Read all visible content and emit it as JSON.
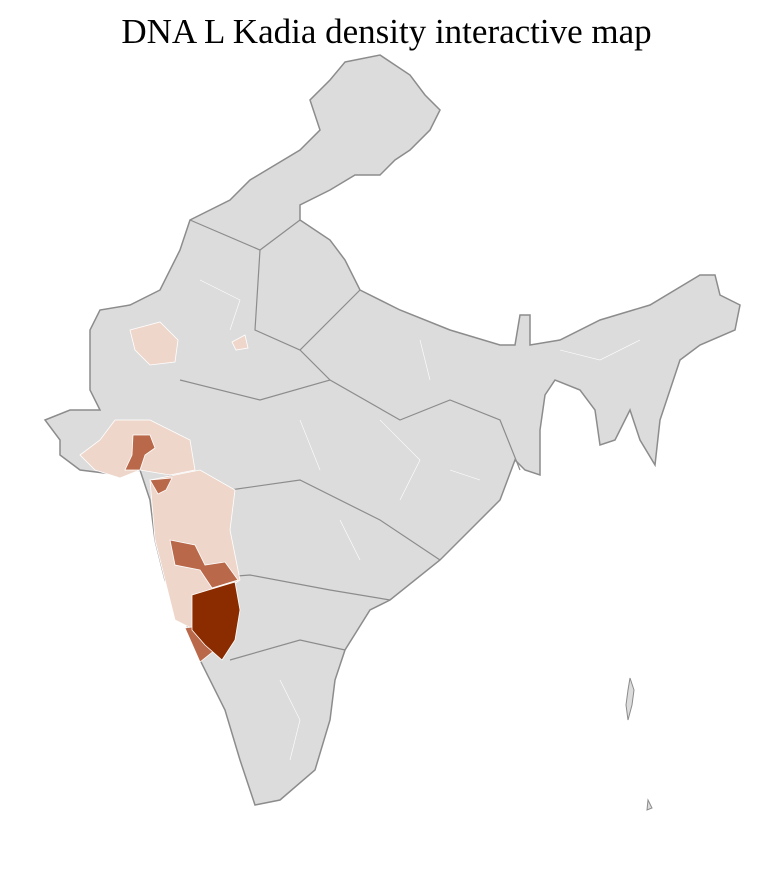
{
  "title": "DNA L Kadia density interactive map",
  "colors": {
    "land": "#dcdcdc",
    "state_border": "#8c8c8c",
    "district_border": "#ffffff",
    "low": "#efd6ca",
    "medium": "#b9684a",
    "high": "#8b2c00"
  },
  "regions": [
    {
      "level": "low"
    },
    {
      "level": "low"
    },
    {
      "level": "low"
    },
    {
      "level": "low"
    },
    {
      "level": "medium"
    },
    {
      "level": "medium"
    },
    {
      "level": "medium"
    },
    {
      "level": "medium"
    },
    {
      "level": "high"
    }
  ]
}
